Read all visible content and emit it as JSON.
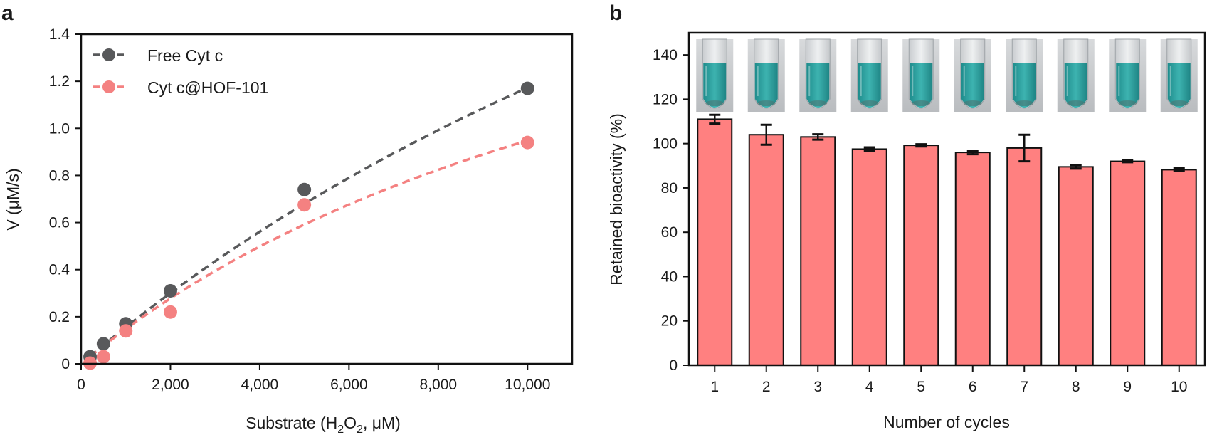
{
  "panels": {
    "a": "a",
    "b": "b"
  },
  "chart_data": [
    {
      "type": "scatter",
      "panel": "a",
      "xlabel": {
        "main": "Substrate (H",
        "sub": "2",
        "mid": "O",
        "sub2": "2",
        "tail": ", μM)"
      },
      "ylabel": "V (μM/s)",
      "xlim": [
        0,
        11000
      ],
      "ylim": [
        0,
        1.4
      ],
      "xticks": [
        0,
        2000,
        4000,
        6000,
        8000,
        10000
      ],
      "xtick_labels": [
        "0",
        "2,000",
        "4,000",
        "6,000",
        "8,000",
        "10,000"
      ],
      "yticks": [
        0,
        0.2,
        0.4,
        0.6,
        0.8,
        1.0,
        1.2,
        1.4
      ],
      "ytick_labels": [
        "0",
        "0.2",
        "0.4",
        "0.6",
        "0.8",
        "1.0",
        "1.2",
        "1.4"
      ],
      "legend_position": "top-left",
      "series": [
        {
          "name": "Free Cyt c",
          "color": "#58595b",
          "x": [
            200,
            500,
            1000,
            2000,
            5000,
            10000
          ],
          "y": [
            0.03,
            0.085,
            0.17,
            0.31,
            0.74,
            1.17
          ],
          "fit": {
            "vmax": 4.28,
            "km": 26500
          }
        },
        {
          "name": "Cyt c@HOF-101",
          "color": "#f48181",
          "x": [
            200,
            500,
            1000,
            2000,
            5000,
            10000
          ],
          "y": [
            0.003,
            0.03,
            0.14,
            0.22,
            0.675,
            0.94
          ],
          "fit": {
            "vmax": 2.39,
            "km": 15200
          }
        }
      ]
    },
    {
      "type": "bar",
      "panel": "b",
      "xlabel": "Number of cycles",
      "ylabel": "Retained bioactivity (%)",
      "ylim": [
        0,
        150
      ],
      "yticks": [
        0,
        20,
        40,
        60,
        80,
        100,
        120,
        140
      ],
      "ytick_labels": [
        "0",
        "20",
        "40",
        "60",
        "80",
        "100",
        "120",
        "140"
      ],
      "categories": [
        "1",
        "2",
        "3",
        "4",
        "5",
        "6",
        "7",
        "8",
        "9",
        "10"
      ],
      "values": [
        111,
        104,
        103,
        97.5,
        99.2,
        96,
        98,
        89.5,
        92,
        88.2
      ],
      "errors": [
        2,
        4.5,
        1.2,
        0.8,
        0.5,
        0.8,
        6,
        0.8,
        0.4,
        0.6
      ],
      "bar_color": "#ff8080",
      "inset_photos": [
        "test-tube-cycle-1",
        "test-tube-cycle-2",
        "test-tube-cycle-3",
        "test-tube-cycle-4",
        "test-tube-cycle-5",
        "test-tube-cycle-6",
        "test-tube-cycle-7",
        "test-tube-cycle-8",
        "test-tube-cycle-9",
        "test-tube-cycle-10"
      ]
    }
  ]
}
